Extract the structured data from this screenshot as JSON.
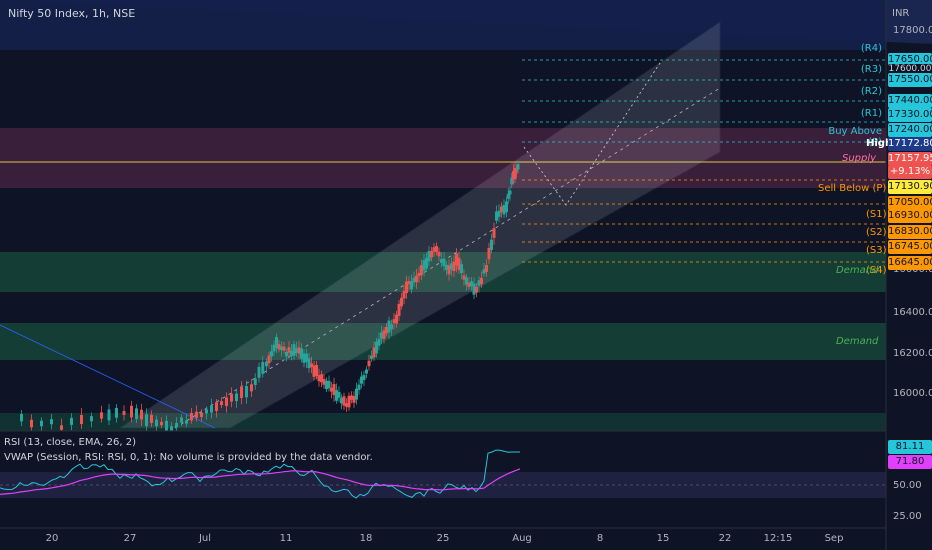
{
  "header": {
    "symbol": "Nifty 50 Index, 1h, NSE",
    "currency": "INR"
  },
  "price_axis": [
    "17800.00",
    "16600.00",
    "16400.00",
    "16200.00",
    "16000.00"
  ],
  "levels": [
    {
      "label": "(R4)",
      "price": "17650.00"
    },
    {
      "label": "(R3)",
      "price": "17550.00"
    },
    {
      "label": "(R2)",
      "price": "17440.00"
    },
    {
      "label": "(R1)",
      "price": "17330.00"
    },
    {
      "label": "Buy Above (P)",
      "price": "17240.00"
    },
    {
      "label": "(S1)",
      "price": "16930.00"
    },
    {
      "label": "(S2)",
      "price": "16830.00"
    },
    {
      "label": "(S3)",
      "price": "16745.00"
    },
    {
      "label": "(S4)",
      "price": "16645.00"
    }
  ],
  "badges": {
    "high_label": "High",
    "high_value": "17172.80",
    "last_price": "17157.95",
    "change": "+9.13%",
    "sell_below_label": "Sell Below (P)",
    "sell_below_value": "17130.90",
    "mid_value": "17050.00",
    "hidden_level": "17600.00"
  },
  "zones": {
    "supply": "Supply",
    "demand_upper": "Demand",
    "demand_lower": "Demand"
  },
  "rsi_panel": {
    "title": "RSI (13, close, EMA, 26, 2)",
    "vwap_title": "VWAP (Session, RSI: RSI, 0, 1): No volume is provided by the data vendor.",
    "rsi_value": "81.11",
    "ema_value": "71.80",
    "axis_50": "50.00",
    "axis_25": "25.00"
  },
  "time_axis": [
    "20",
    "27",
    "Jul",
    "11",
    "18",
    "25",
    "Aug",
    "8",
    "15",
    "22",
    "12:15",
    "Sep"
  ],
  "colors": {
    "background": "#0e1426",
    "supply_zone": "#5a2a4a",
    "demand_zone": "#16443a",
    "level_line": "#26c6da",
    "support_line": "#ff9800",
    "up_candle": "#26a69a",
    "down_candle": "#ef5350",
    "rsi_line": "#26c6da",
    "ema_line": "#e040fb"
  }
}
